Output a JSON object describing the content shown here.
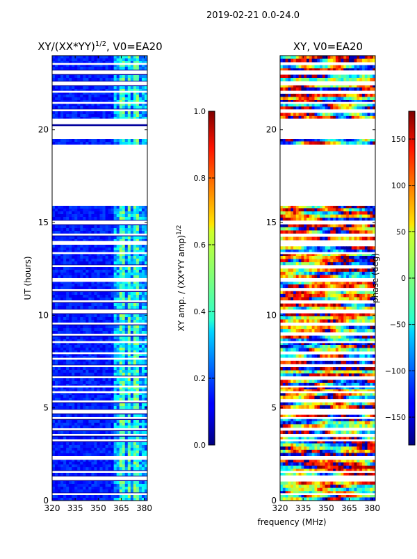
{
  "figure": {
    "suptitle": "2019-02-21 0.0-24.0",
    "xlabel_shared": "frequency (MHz)"
  },
  "chart_data": [
    {
      "type": "heatmap",
      "title": "XY/(XX*YY)",
      "title_exponent": "1/2",
      "title_suffix": ", V0=EA20",
      "ylabel": "UT (hours)",
      "xlim": [
        320,
        382
      ],
      "ylim": [
        0,
        24
      ],
      "xticks": [
        320,
        335,
        350,
        365,
        380
      ],
      "yticks": [
        0,
        5,
        10,
        15,
        20
      ],
      "gaps_hours": [
        [
          0.3,
          0.4
        ],
        [
          1.1,
          1.3
        ],
        [
          1.5,
          1.6
        ],
        [
          2.2,
          2.4
        ],
        [
          3.2,
          3.3
        ],
        [
          3.5,
          3.6
        ],
        [
          3.8,
          3.9
        ],
        [
          4.4,
          4.5
        ],
        [
          4.7,
          4.9
        ],
        [
          5.3,
          5.4
        ],
        [
          5.8,
          5.9
        ],
        [
          6.1,
          6.2
        ],
        [
          6.6,
          6.7
        ],
        [
          7.2,
          7.3
        ],
        [
          7.6,
          7.7
        ],
        [
          7.9,
          8.0
        ],
        [
          8.5,
          8.6
        ],
        [
          8.9,
          9.0
        ],
        [
          9.5,
          9.6
        ],
        [
          10.1,
          10.3
        ],
        [
          10.7,
          10.8
        ],
        [
          11.3,
          11.4
        ],
        [
          11.8,
          12.0
        ],
        [
          12.6,
          12.7
        ],
        [
          13.3,
          13.4
        ],
        [
          13.8,
          14.0
        ],
        [
          14.3,
          14.4
        ],
        [
          14.9,
          15.1
        ],
        [
          15.9,
          19.2
        ],
        [
          19.5,
          20.2
        ],
        [
          20.3,
          20.6
        ],
        [
          21.0,
          21.1
        ],
        [
          21.4,
          21.5
        ],
        [
          22.0,
          22.1
        ],
        [
          22.4,
          22.6
        ],
        [
          23.0,
          23.2
        ],
        [
          23.5,
          23.6
        ]
      ],
      "colorbar": {
        "label": "XY amp. / (XX*YY amp)",
        "label_exponent": "1/2",
        "range": [
          0.0,
          1.0
        ],
        "ticks": [
          "0.0",
          "0.2",
          "0.4",
          "0.6",
          "0.8",
          "1.0"
        ]
      }
    },
    {
      "type": "heatmap",
      "title": "XY, V0=EA20",
      "ylabel": "",
      "xlim": [
        320,
        382
      ],
      "ylim": [
        0,
        24
      ],
      "xticks": [
        320,
        335,
        350,
        365,
        380
      ],
      "yticks": [
        0,
        5,
        10,
        15,
        20
      ],
      "colorbar": {
        "label": "phase (deg)",
        "range": [
          -180,
          180
        ],
        "ticks": [
          "−150",
          "−100",
          "−50",
          "0",
          "50",
          "100",
          "150"
        ]
      }
    }
  ]
}
